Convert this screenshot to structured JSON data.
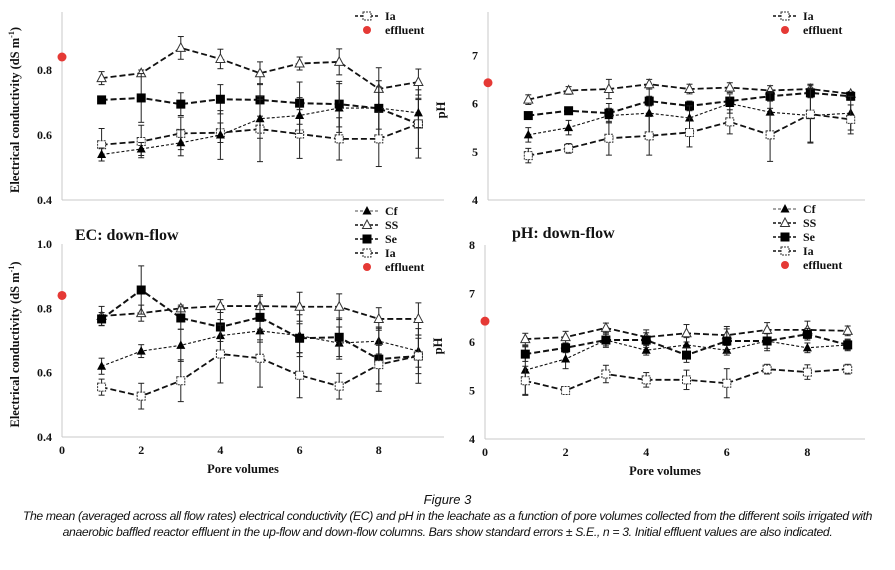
{
  "caption": {
    "title": "Figure 3",
    "text": "The mean (averaged across all flow rates) electrical conductivity (EC) and pH in the leachate as a function of pore volumes collected from the different soils irrigated with anaerobic baffled reactor effluent in the up-flow and down-flow columns. Bars show standard errors ± S.E., n = 3. Initial effluent values are also indicated."
  },
  "chart_data": [
    {
      "id": "ec-up",
      "type": "line",
      "title": "",
      "xlabel": "",
      "ylabel": "Electrical conductivity (dS m-1)",
      "ylabel_main": "Electrical conductivity (dS m",
      "ylabel_sup": "-1",
      "ylabel_end": ")",
      "xlim": [
        0,
        9.5
      ],
      "ylim": [
        0.4,
        1.0
      ],
      "yticks": [
        "0.4",
        "0.6",
        "0.8"
      ],
      "ytick_values": [
        0.4,
        0.6,
        0.8
      ],
      "xticks": [],
      "xtick_values": [],
      "legend": [
        "Ia",
        "effluent"
      ],
      "legend_position": "top-right",
      "x": [
        1,
        2,
        3,
        4,
        5,
        6,
        7,
        8,
        9
      ],
      "series": [
        {
          "name": "SS",
          "marker": "open-triangle",
          "values": [
            0.775,
            0.79,
            0.868,
            0.834,
            0.79,
            0.82,
            0.825,
            0.742,
            0.763
          ],
          "errors": [
            0.02,
            0.01,
            0.035,
            0.03,
            0.035,
            0.02,
            0.04,
            0.065,
            0.04
          ]
        },
        {
          "name": "Se",
          "marker": "filled-square",
          "values": [
            0.708,
            0.714,
            0.695,
            0.71,
            0.708,
            0.698,
            0.695,
            0.682,
            0.634
          ],
          "errors": [
            0.01,
            0.075,
            0.035,
            0.045,
            0.05,
            0.065,
            0.07,
            0.085,
            0.105
          ]
        },
        {
          "name": "Ia",
          "marker": "open-square",
          "values": [
            0.57,
            0.58,
            0.605,
            0.607,
            0.618,
            0.603,
            0.588,
            0.588,
            0.634
          ],
          "errors": [
            0.05,
            0.05,
            0.05,
            0.03,
            0.1,
            0.075,
            0.065,
            0.085,
            0.075
          ]
        },
        {
          "name": "Cf",
          "marker": "filled-triangle",
          "values": [
            0.54,
            0.557,
            0.576,
            0.6,
            0.65,
            0.66,
            0.683,
            0.683,
            0.668
          ],
          "errors": [
            0.02,
            0.02,
            0.04,
            0.075,
            0.06,
            0.055,
            0.075,
            0.065,
            0.045
          ]
        }
      ],
      "effluent": {
        "x": 0,
        "y": 0.84,
        "color": "#e53935"
      }
    },
    {
      "id": "ph-up",
      "type": "line",
      "title": "",
      "xlabel": "",
      "ylabel": "pH",
      "ylabel_main": "pH",
      "ylabel_sup": "",
      "ylabel_end": "",
      "xlim": [
        0,
        9.5
      ],
      "ylim": [
        4,
        8
      ],
      "yticks": [
        "4",
        "5",
        "6",
        "7"
      ],
      "ytick_values": [
        4,
        5,
        6,
        7
      ],
      "xticks": [],
      "xtick_values": [],
      "legend": [
        "Ia",
        "effluent"
      ],
      "legend_position": "top-right",
      "x": [
        1,
        2,
        3,
        4,
        5,
        6,
        7,
        8,
        9
      ],
      "series": [
        {
          "name": "SS",
          "marker": "open-triangle",
          "values": [
            6.08,
            6.27,
            6.3,
            6.4,
            6.3,
            6.33,
            6.27,
            6.3,
            6.2
          ],
          "errors": [
            0.1,
            0.08,
            0.2,
            0.1,
            0.1,
            0.1,
            0.1,
            0.1,
            0.05
          ]
        },
        {
          "name": "Se",
          "marker": "filled-square",
          "values": [
            5.75,
            5.85,
            5.8,
            6.05,
            5.95,
            6.05,
            6.15,
            6.22,
            6.15
          ],
          "errors": [
            0.05,
            0.05,
            0.2,
            0.1,
            0.1,
            0.05,
            0.1,
            0.1,
            0.08
          ]
        },
        {
          "name": "Cf",
          "marker": "filled-triangle",
          "values": [
            5.35,
            5.5,
            5.75,
            5.8,
            5.7,
            6.0,
            5.82,
            5.75,
            5.8
          ],
          "errors": [
            0.15,
            0.15,
            0.15,
            0.5,
            0.25,
            0.2,
            0.4,
            0.55,
            0.35
          ]
        },
        {
          "name": "Ia",
          "marker": "open-square",
          "values": [
            4.92,
            5.07,
            5.28,
            5.33,
            5.4,
            5.62,
            5.35,
            5.78,
            5.67
          ],
          "errors": [
            0.15,
            0.1,
            0.35,
            0.4,
            0.3,
            0.25,
            0.55,
            0.6,
            0.3
          ]
        }
      ],
      "effluent": {
        "x": 0,
        "y": 6.43,
        "color": "#e53935"
      }
    },
    {
      "id": "ec-down",
      "type": "line",
      "title": "EC: down-flow",
      "xlabel": "Pore volumes",
      "ylabel": "Electrical conductivity (dS m-1)",
      "ylabel_main": "Electrical conductivity (dS m",
      "ylabel_sup": "-1",
      "ylabel_end": ")",
      "xlim": [
        0,
        9.5
      ],
      "ylim": [
        0.4,
        1.0
      ],
      "yticks": [
        "0.4",
        "0.6",
        "0.8",
        "1.0"
      ],
      "ytick_values": [
        0.4,
        0.6,
        0.8,
        1.0
      ],
      "xticks": [
        "0",
        "2",
        "4",
        "6",
        "8"
      ],
      "xtick_values": [
        0,
        2,
        4,
        6,
        8
      ],
      "legend": [
        "Cf",
        "SS",
        "Se",
        "Ia",
        "effluent"
      ],
      "legend_position": "top-right",
      "x": [
        1,
        2,
        3,
        4,
        5,
        6,
        7,
        8,
        9
      ],
      "series": [
        {
          "name": "Cf",
          "marker": "filled-triangle",
          "values": [
            0.62,
            0.667,
            0.685,
            0.715,
            0.73,
            0.715,
            0.692,
            0.698,
            0.667
          ],
          "errors": [
            0.025,
            0.02,
            0.05,
            0.05,
            0.035,
            0.065,
            0.05,
            0.04,
            0.05
          ]
        },
        {
          "name": "SS",
          "marker": "open-triangle",
          "values": [
            0.776,
            0.785,
            0.8,
            0.807,
            0.807,
            0.805,
            0.805,
            0.767,
            0.767
          ],
          "errors": [
            0.03,
            0.025,
            0.01,
            0.02,
            0.03,
            0.045,
            0.04,
            0.035,
            0.05
          ]
        },
        {
          "name": "Se",
          "marker": "filled-square",
          "values": [
            0.767,
            0.857,
            0.77,
            0.742,
            0.772,
            0.707,
            0.71,
            0.642,
            0.652
          ],
          "errors": [
            0.02,
            0.075,
            0.035,
            0.045,
            0.07,
            0.045,
            0.06,
            0.1,
            0.085
          ]
        },
        {
          "name": "Ia",
          "marker": "open-square",
          "values": [
            0.555,
            0.527,
            0.575,
            0.658,
            0.645,
            0.592,
            0.558,
            0.625,
            0.652
          ],
          "errors": [
            0.025,
            0.04,
            0.065,
            0.09,
            0.09,
            0.07,
            0.04,
            0.06,
            0.055
          ]
        }
      ],
      "effluent": {
        "x": 0,
        "y": 0.84,
        "color": "#e53935"
      }
    },
    {
      "id": "ph-down",
      "type": "line",
      "title": "pH: down-flow",
      "xlabel": "Pore volumes",
      "ylabel": "pH",
      "ylabel_main": "pH",
      "ylabel_sup": "",
      "ylabel_end": "",
      "xlim": [
        0,
        9.5
      ],
      "ylim": [
        4,
        8
      ],
      "yticks": [
        "4",
        "5",
        "6",
        "7",
        "8"
      ],
      "ytick_values": [
        4,
        5,
        6,
        7,
        8
      ],
      "xticks": [
        "0",
        "2",
        "4",
        "6",
        "8"
      ],
      "xtick_values": [
        0,
        2,
        4,
        6,
        8
      ],
      "legend": [
        "Cf",
        "SS",
        "Se",
        "Ia",
        "effluent"
      ],
      "legend_position": "top-right",
      "x": [
        1,
        2,
        3,
        4,
        5,
        6,
        7,
        8,
        9
      ],
      "series": [
        {
          "name": "Cf",
          "marker": "filled-triangle",
          "values": [
            5.42,
            5.65,
            6.04,
            5.83,
            5.94,
            5.83,
            6.02,
            5.88,
            5.94
          ],
          "errors": [
            0.5,
            0.2,
            0.15,
            0.1,
            0.15,
            0.1,
            0.2,
            0.1,
            0.1
          ]
        },
        {
          "name": "SS",
          "marker": "open-triangle",
          "values": [
            6.06,
            6.1,
            6.29,
            6.1,
            6.18,
            6.14,
            6.25,
            6.25,
            6.23
          ],
          "errors": [
            0.12,
            0.12,
            0.1,
            0.15,
            0.18,
            0.18,
            0.15,
            0.18,
            0.1
          ]
        },
        {
          "name": "Se",
          "marker": "filled-square",
          "values": [
            5.75,
            5.88,
            6.04,
            6.04,
            5.73,
            6.02,
            6.02,
            6.16,
            5.94
          ],
          "errors": [
            0.15,
            0.1,
            0.12,
            0.15,
            0.15,
            0.25,
            0.15,
            0.12,
            0.12
          ]
        },
        {
          "name": "Ia",
          "marker": "open-square",
          "values": [
            5.2,
            5.0,
            5.34,
            5.22,
            5.22,
            5.15,
            5.44,
            5.38,
            5.44
          ],
          "errors": [
            0.3,
            0.05,
            0.18,
            0.15,
            0.2,
            0.3,
            0.1,
            0.15,
            0.1
          ]
        }
      ],
      "effluent": {
        "x": 0,
        "y": 6.43,
        "color": "#e53935"
      }
    }
  ]
}
